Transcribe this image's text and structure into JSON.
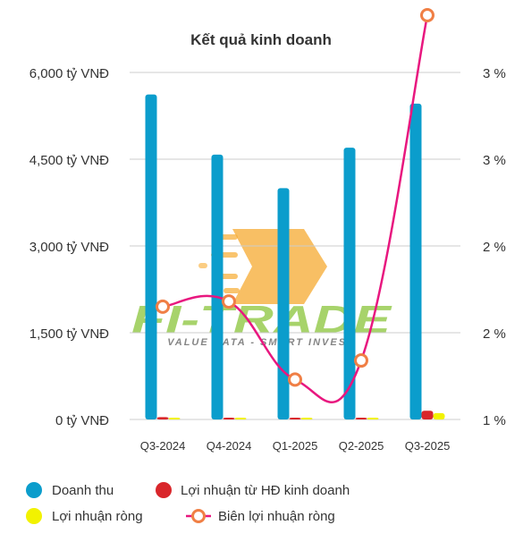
{
  "chart_data": {
    "type": "bar",
    "title": "Kết quả kinh doanh",
    "categories": [
      "Q3-2024",
      "Q4-2024",
      "Q1-2025",
      "Q2-2025",
      "Q3-2025"
    ],
    "left_axis": {
      "ticks": [
        0,
        1500,
        3000,
        4500,
        6000
      ],
      "tick_labels": [
        "0 tỷ VNĐ",
        "1,500 tỷ VNĐ",
        "3,000 tỷ VNĐ",
        "4,500 tỷ VNĐ",
        "6,000 tỷ VNĐ"
      ],
      "ylim": [
        0,
        6000
      ]
    },
    "right_axis": {
      "ticks": [
        1.0,
        1.5,
        2.0,
        2.5,
        3.0
      ],
      "tick_labels": [
        "1 %",
        "2 %",
        "2 %",
        "3 %",
        "3 %"
      ],
      "ylim": [
        1.0,
        3.0
      ]
    },
    "series": [
      {
        "name": "Doanh thu",
        "kind": "bar",
        "axis": "left",
        "color": "#0b9dcc",
        "values": [
          5620,
          4580,
          4000,
          4700,
          5460
        ]
      },
      {
        "name": "Lợi nhuận từ HĐ kinh doanh",
        "kind": "bar",
        "axis": "left",
        "color": "#d9262b",
        "values": [
          40,
          25,
          10,
          25,
          150
        ]
      },
      {
        "name": "Lợi nhuận ròng",
        "kind": "bar",
        "axis": "left",
        "color": "#f2f200",
        "values": [
          30,
          20,
          8,
          18,
          110
        ]
      },
      {
        "name": "Biên lợi nhuận ròng",
        "kind": "line",
        "axis": "right",
        "color": "#e8177f",
        "marker_color": "#f07f45",
        "values": [
          1.65,
          1.68,
          1.23,
          1.34,
          3.33
        ]
      }
    ],
    "grid": true,
    "legend_position": "bottom"
  },
  "watermark": {
    "brand": "FI-TRADE",
    "tagline": "VALUE DATA - SMART INVEST"
  }
}
